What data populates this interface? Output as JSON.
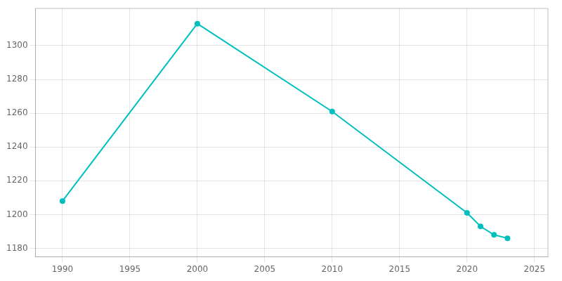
{
  "chart_data": {
    "type": "line",
    "x": [
      1990,
      2000,
      2010,
      2020,
      2021,
      2022,
      2023
    ],
    "values": [
      1208,
      1313,
      1261,
      1201,
      1193,
      1188,
      1186
    ],
    "color": "#00BFBF",
    "marker": "circle",
    "xlim": [
      1988,
      2026
    ],
    "ylim": [
      1175,
      1322
    ],
    "xticks": [
      1990,
      1995,
      2000,
      2005,
      2010,
      2015,
      2020,
      2025
    ],
    "yticks": [
      1180,
      1200,
      1220,
      1240,
      1260,
      1280,
      1300
    ],
    "grid": true
  }
}
